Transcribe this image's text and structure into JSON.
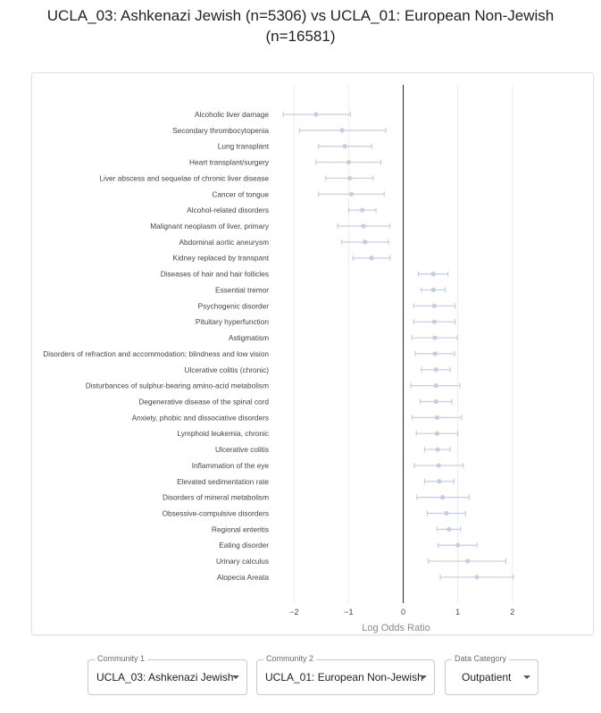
{
  "title_line1": "UCLA_03: Ashkenazi Jewish (n=5306) vs UCLA_01: European Non-Jewish",
  "title_line2": "(n=16581)",
  "chart_data": {
    "type": "forest",
    "xlabel": "Log Odds Ratio",
    "xlim": [
      -2.3,
      2.2
    ],
    "xticks": [
      -2,
      -1,
      0,
      1,
      2
    ],
    "grid": true,
    "reference_line": 0,
    "point_color": "#c5cde6",
    "categories": [
      "Alcoholic liver damage",
      "Secondary thrombocytopenia",
      "Lung transplant",
      "Heart transplant/surgery",
      "Liver abscess and sequelae of chronic liver disease",
      "Cancer of tongue",
      "Alcohol-related disorders",
      "Malignant neoplasm of liver, primary",
      "Abdominal aortic aneurysm",
      "Kidney replaced by transpant",
      "Diseases of hair and hair follicles",
      "Essential tremor",
      "Psychogenic disorder",
      "Pituitary hyperfunction",
      "Astigmatism",
      "Disorders of refraction and accommodation; blindness and low vision",
      "Ulcerative colitis (chronic)",
      "Disturbances of sulphur-bearing amino-acid metabolism",
      "Degenerative disease of the spinal cord",
      "Anxiety, phobic and dissociative disorders",
      "Lymphoid leukemia, chronic",
      "Ulcerative colitis",
      "Inflammation of the eye",
      "Elevated sedimentation rate",
      "Disorders of mineral metabolism",
      "Obsessive-compulsive disorders",
      "Regional enteritis",
      "Eating disorder",
      "Urinary calculus",
      "Alopecia Areata"
    ],
    "estimate": [
      -1.6,
      -1.12,
      -1.07,
      -1.0,
      -0.98,
      -0.95,
      -0.75,
      -0.73,
      -0.7,
      -0.58,
      0.55,
      0.55,
      0.57,
      0.57,
      0.58,
      0.58,
      0.6,
      0.6,
      0.6,
      0.62,
      0.62,
      0.63,
      0.65,
      0.66,
      0.72,
      0.79,
      0.84,
      1.0,
      1.18,
      1.35
    ],
    "ci_low": [
      -2.2,
      -1.9,
      -1.55,
      -1.6,
      -1.42,
      -1.55,
      -1.0,
      -1.2,
      -1.13,
      -0.92,
      0.28,
      0.33,
      0.19,
      0.19,
      0.16,
      0.22,
      0.33,
      0.14,
      0.31,
      0.16,
      0.24,
      0.39,
      0.2,
      0.39,
      0.25,
      0.44,
      0.62,
      0.64,
      0.46,
      0.68
    ],
    "ci_high": [
      -0.97,
      -0.32,
      -0.58,
      -0.41,
      -0.55,
      -0.35,
      -0.5,
      -0.25,
      -0.27,
      -0.24,
      0.82,
      0.77,
      0.95,
      0.95,
      0.99,
      0.94,
      0.86,
      1.04,
      0.89,
      1.07,
      1.0,
      0.86,
      1.1,
      0.93,
      1.21,
      1.14,
      1.05,
      1.35,
      1.88,
      2.02
    ]
  },
  "controls": {
    "community1": {
      "label": "Community 1",
      "value": "UCLA_03: Ashkenazi Jewish"
    },
    "community2": {
      "label": "Community 2",
      "value": "UCLA_01: European Non-Jewish"
    },
    "category": {
      "label": "Data Category",
      "value": "Outpatient"
    }
  }
}
